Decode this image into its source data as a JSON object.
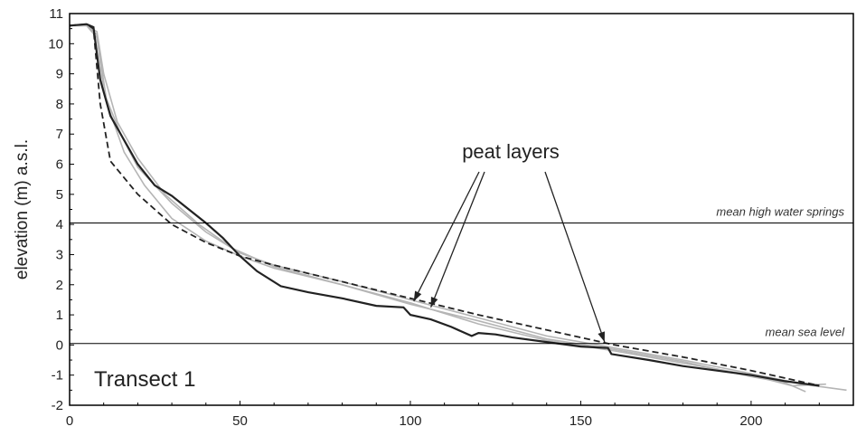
{
  "chart_data": {
    "type": "line",
    "title": "",
    "xlabel": "",
    "ylabel": "elevation (m) a.s.l.",
    "xlim": [
      0,
      230
    ],
    "ylim": [
      -2,
      11
    ],
    "x_ticks": [
      0,
      50,
      100,
      150,
      200
    ],
    "y_ticks": [
      -2,
      -1,
      0,
      1,
      2,
      3,
      4,
      5,
      6,
      7,
      8,
      9,
      10,
      11
    ],
    "panel_label": "Transect 1",
    "grid": false,
    "reference_lines": [
      {
        "label": "mean high water springs",
        "y": 4.05
      },
      {
        "label": "mean sea level",
        "y": 0.05
      }
    ],
    "annotation": {
      "text": "peat layers",
      "targets": [
        {
          "x": 101,
          "y": 1.45
        },
        {
          "x": 106,
          "y": 1.25
        },
        {
          "x": 157,
          "y": 0.1
        }
      ]
    },
    "series": [
      {
        "style": "solid-dark",
        "x": [
          0,
          5,
          7,
          9,
          12,
          16,
          20,
          25,
          30,
          35,
          40,
          45,
          50,
          55,
          62,
          70,
          80,
          90,
          98,
          100,
          106,
          112,
          118,
          120,
          125,
          130,
          140,
          150,
          158,
          159,
          170,
          180,
          190,
          200,
          210,
          220
        ],
        "y": [
          10.6,
          10.65,
          10.55,
          8.8,
          7.6,
          6.8,
          6.0,
          5.3,
          4.95,
          4.5,
          4.05,
          3.55,
          2.95,
          2.45,
          1.95,
          1.75,
          1.55,
          1.3,
          1.25,
          1.0,
          0.85,
          0.6,
          0.3,
          0.4,
          0.35,
          0.25,
          0.1,
          -0.05,
          -0.1,
          -0.3,
          -0.5,
          -0.7,
          -0.85,
          -1.0,
          -1.2,
          -1.35
        ]
      },
      {
        "style": "dashed",
        "x": [
          0,
          5,
          7,
          9,
          12,
          20,
          30,
          40,
          50,
          60,
          80,
          100,
          120,
          140,
          160,
          180,
          200,
          220
        ],
        "y": [
          10.6,
          10.65,
          10.5,
          8.0,
          6.1,
          5.0,
          4.0,
          3.4,
          2.95,
          2.65,
          2.1,
          1.55,
          1.0,
          0.5,
          0.0,
          -0.4,
          -0.85,
          -1.35
        ]
      },
      {
        "style": "light",
        "x": [
          0,
          5,
          8,
          10,
          15,
          20,
          30,
          40,
          50,
          60,
          80,
          100,
          120,
          140,
          160,
          180,
          200,
          215,
          228
        ],
        "y": [
          10.6,
          10.6,
          10.3,
          8.4,
          7.0,
          5.9,
          4.7,
          3.75,
          3.05,
          2.65,
          2.1,
          1.5,
          0.9,
          0.3,
          -0.1,
          -0.5,
          -0.95,
          -1.3,
          -1.5
        ]
      },
      {
        "style": "light",
        "x": [
          0,
          5,
          8,
          11,
          16,
          22,
          30,
          40,
          50,
          60,
          80,
          100,
          120,
          140,
          160,
          180,
          200,
          210,
          216
        ],
        "y": [
          10.6,
          10.6,
          10.2,
          8.0,
          6.4,
          5.3,
          4.2,
          3.45,
          2.95,
          2.55,
          2.0,
          1.35,
          0.8,
          0.2,
          -0.15,
          -0.55,
          -1.05,
          -1.25,
          -1.55
        ]
      },
      {
        "style": "light",
        "x": [
          0,
          5,
          8,
          10,
          14,
          20,
          28,
          38,
          48,
          60,
          80,
          100,
          120,
          140,
          160,
          180,
          200,
          212,
          222
        ],
        "y": [
          10.6,
          10.6,
          10.4,
          9.0,
          7.4,
          6.2,
          5.0,
          4.0,
          3.2,
          2.6,
          2.0,
          1.4,
          0.7,
          0.15,
          -0.2,
          -0.6,
          -1.0,
          -1.35,
          -1.3
        ]
      }
    ]
  }
}
